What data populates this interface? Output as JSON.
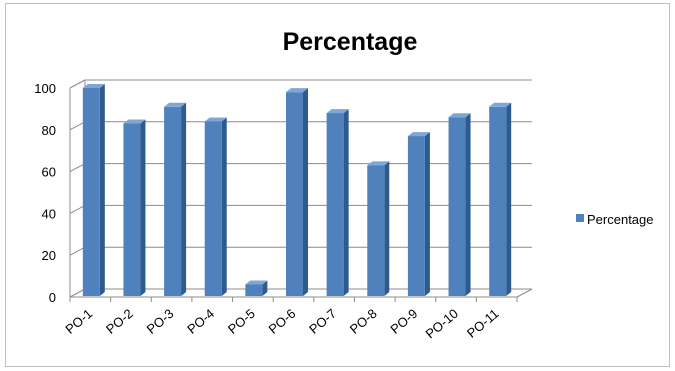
{
  "chart_data": {
    "type": "bar",
    "title": "Percentage",
    "categories": [
      "PO-1",
      "PO-2",
      "PO-3",
      "PO-4",
      "PO-5",
      "PO-6",
      "PO-7",
      "PO-8",
      "PO-9",
      "PO-10",
      "PO-11"
    ],
    "series": [
      {
        "name": "Percentage",
        "values": [
          100,
          83,
          91,
          84,
          6,
          98,
          88,
          63,
          77,
          86,
          91
        ]
      }
    ],
    "y_ticks": [
      "0",
      "20",
      "40",
      "60",
      "80",
      "100"
    ],
    "ylim": [
      0,
      100
    ],
    "grid": true,
    "legend_position": "right",
    "xlabel": "",
    "ylabel": "",
    "colors": {
      "bar_front": "#4f81bd",
      "bar_side": "#2e5b8e",
      "bar_top": "#7fa6d6",
      "grid": "#8c8c8c"
    }
  }
}
